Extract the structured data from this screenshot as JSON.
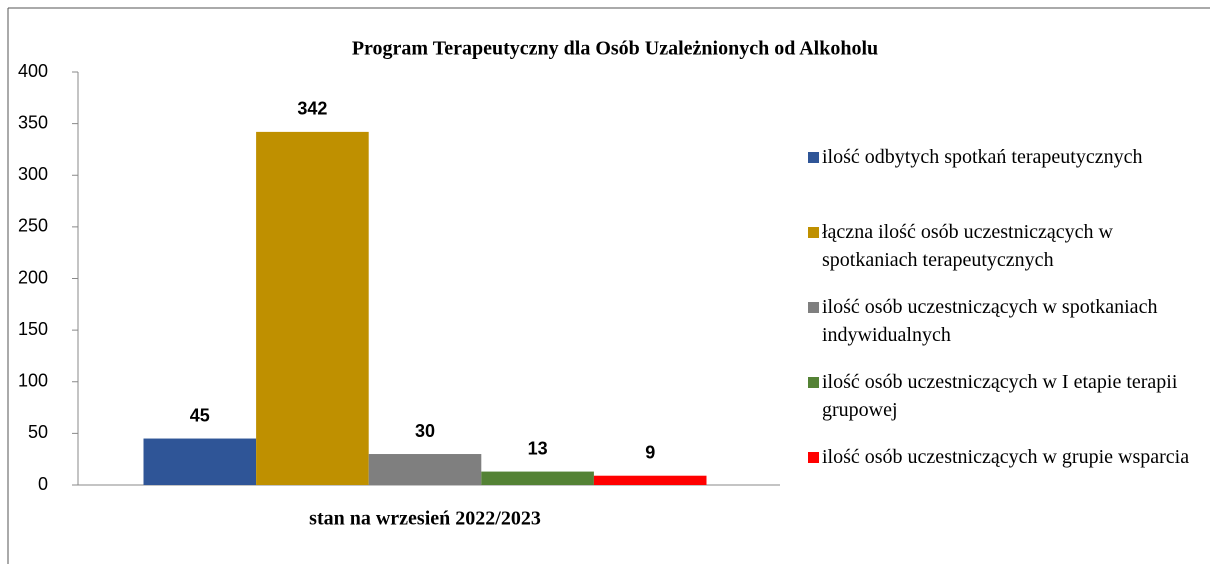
{
  "chart_data": {
    "type": "bar",
    "title": "Program Terapeutyczny dla Osób Uzależnionych od Alkoholu",
    "categories": [
      "stan na wrzesień 2022/2023"
    ],
    "series": [
      {
        "name": "ilość odbytych spotkań terapeutycznych",
        "color": "#2f5597",
        "values": [
          45
        ]
      },
      {
        "name": "łączna ilość osób uczestniczących w spotkaniach terapeutycznych",
        "color": "#bf9000",
        "values": [
          342
        ]
      },
      {
        "name": "ilość osób uczestniczących w spotkaniach indywidualnych",
        "color": "#7f7f7f",
        "values": [
          30
        ]
      },
      {
        "name": "ilość osób uczestniczących w I etapie terapii grupowej",
        "color": "#548235",
        "values": [
          13
        ]
      },
      {
        "name": "ilość osób uczestniczących w grupie wsparcia",
        "color": "#ff0000",
        "values": [
          9
        ]
      }
    ],
    "ylim": [
      0,
      400
    ],
    "yticks": [
      0,
      50,
      100,
      150,
      200,
      250,
      300,
      350,
      400
    ],
    "grid": false,
    "legend": "right"
  }
}
